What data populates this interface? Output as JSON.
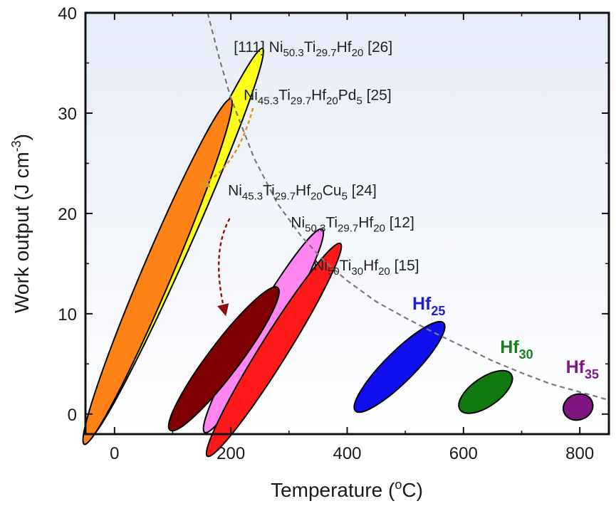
{
  "chart_data": {
    "type": "scatter",
    "title": "",
    "xlabel": {
      "base": "Temperature (",
      "sup": "o",
      "rest": "C)"
    },
    "ylabel": {
      "base": "Work output (J cm",
      "sup": "-3",
      "rest": ")"
    },
    "xlim": [
      -50,
      850
    ],
    "ylim": [
      -2,
      40
    ],
    "xticks": [
      0,
      200,
      400,
      600,
      800
    ],
    "yticks": [
      0,
      10,
      20,
      30,
      40
    ],
    "grid": false,
    "colors": {
      "background_top": "#e6ecf7",
      "background_bottom": "#ffffff",
      "boundary": "#7a7a7a",
      "hf25": "#1f1fd0",
      "hf30": "#1a7f1a",
      "hf35": "#7f1a80",
      "arrow_orange": "#e8901a",
      "arrow_darkred": "#8b1010"
    },
    "regions": [
      {
        "name": "yellow",
        "color": "#ffff1a",
        "cx": 105,
        "cy": 17,
        "rx": 20,
        "ry": 21.3,
        "angle_deg": 66
      },
      {
        "name": "orange",
        "color": "#ff8216",
        "cx": 74,
        "cy": 14.2,
        "rx": 21,
        "ry": 18.7,
        "angle_deg": 67
      },
      {
        "name": "pink",
        "color": "#ff86f0",
        "cx": 256,
        "cy": 8.3,
        "rx": 20,
        "ry": 11.7,
        "angle_deg": 60
      },
      {
        "name": "red",
        "color": "#ff1a1a",
        "cx": 274,
        "cy": 6.4,
        "rx": 19,
        "ry": 12.5,
        "angle_deg": 58
      },
      {
        "name": "maroon",
        "color": "#7f0000",
        "cx": 188,
        "cy": 5.5,
        "rx": 22,
        "ry": 8.9,
        "angle_deg": 53
      },
      {
        "name": "blue",
        "color": "#1010ee",
        "cx": 490,
        "cy": 4.7,
        "rx": 21,
        "ry": 6.2,
        "angle_deg": 45
      },
      {
        "name": "green",
        "color": "#107a10",
        "cx": 638,
        "cy": 2.2,
        "rx": 20,
        "ry": 3.1,
        "angle_deg": 35
      },
      {
        "name": "purple",
        "color": "#7f1480",
        "cx": 797,
        "cy": 0.7,
        "rx": 18,
        "ry": 1.5,
        "angle_deg": 20
      }
    ],
    "boundary_curve": [
      [
        160,
        40
      ],
      [
        180,
        35.5
      ],
      [
        200,
        31.5
      ],
      [
        240,
        25.5
      ],
      [
        280,
        21
      ],
      [
        320,
        17.8
      ],
      [
        360,
        15.3
      ],
      [
        400,
        13.3
      ],
      [
        450,
        11.2
      ],
      [
        500,
        9.6
      ],
      [
        550,
        8.1
      ],
      [
        600,
        6.7
      ],
      [
        650,
        5.3
      ],
      [
        700,
        4.1
      ],
      [
        750,
        3.0
      ],
      [
        800,
        2.2
      ],
      [
        850,
        1.4
      ]
    ],
    "annotations": [
      {
        "parts": [
          [
            "[111] Ni",
            ""
          ],
          [
            "50.3",
            "sub"
          ],
          [
            "Ti",
            ""
          ],
          [
            "29.7",
            "sub"
          ],
          [
            "Hf",
            ""
          ],
          [
            "20",
            "sub"
          ],
          [
            " [26]",
            ""
          ]
        ],
        "x": 205,
        "y": 36.1
      },
      {
        "parts": [
          [
            "Ni",
            ""
          ],
          [
            "45.3",
            "sub"
          ],
          [
            "Ti",
            ""
          ],
          [
            "29.7",
            "sub"
          ],
          [
            "Hf",
            ""
          ],
          [
            "20",
            "sub"
          ],
          [
            "Pd",
            ""
          ],
          [
            "5",
            "sub"
          ],
          [
            " [25]",
            ""
          ]
        ],
        "x": 222,
        "y": 31.3
      },
      {
        "parts": [
          [
            "Ni",
            ""
          ],
          [
            "45.3",
            "sub"
          ],
          [
            "Ti",
            ""
          ],
          [
            "29.7",
            "sub"
          ],
          [
            "Hf",
            ""
          ],
          [
            "20",
            "sub"
          ],
          [
            "Cu",
            ""
          ],
          [
            "5",
            "sub"
          ],
          [
            " [24]",
            ""
          ]
        ],
        "x": 195,
        "y": 21.8
      },
      {
        "parts": [
          [
            "Ni",
            ""
          ],
          [
            "50.3",
            "sub"
          ],
          [
            "Ti",
            ""
          ],
          [
            "29.7",
            "sub"
          ],
          [
            "Hf",
            ""
          ],
          [
            "20",
            "sub"
          ],
          [
            " [12]",
            ""
          ]
        ],
        "x": 303,
        "y": 18.6
      },
      {
        "parts": [
          [
            "Ni",
            ""
          ],
          [
            "50",
            "sub"
          ],
          [
            "Ti",
            ""
          ],
          [
            "30",
            "sub"
          ],
          [
            "Hf",
            ""
          ],
          [
            "20",
            "sub"
          ],
          [
            " [15]",
            ""
          ]
        ],
        "x": 342,
        "y": 14.3
      }
    ],
    "hf_labels": [
      {
        "base": "Hf",
        "sub": "25",
        "x": 512,
        "y": 10.4,
        "colorKey": "hf25"
      },
      {
        "base": "Hf",
        "sub": "30",
        "x": 663,
        "y": 6.1,
        "colorKey": "hf30"
      },
      {
        "base": "Hf",
        "sub": "35",
        "x": 776,
        "y": 4.1,
        "colorKey": "hf35"
      }
    ],
    "arrows": [
      {
        "name": "pd-arrow",
        "colorKey": "arrow_orange",
        "from": [
          238,
          30.5
        ],
        "ctrl": [
          210,
          24.5
        ],
        "to": [
          148,
          22.8
        ]
      },
      {
        "name": "cu-arrow",
        "colorKey": "arrow_darkred",
        "from": [
          198,
          19.5
        ],
        "ctrl": [
          165,
          16
        ],
        "to": [
          190,
          10.1
        ]
      }
    ]
  }
}
